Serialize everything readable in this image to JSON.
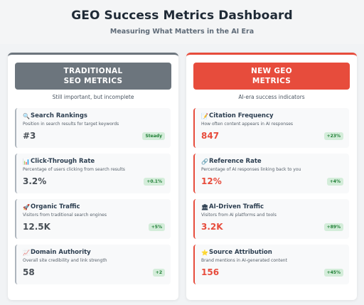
{
  "header": {
    "title": "GEO Success Metrics Dashboard",
    "subtitle": "Measuring What Matters in the AI Era"
  },
  "traditional": {
    "title_line1": "TRADITIONAL",
    "title_line2": "SEO METRICS",
    "caption": "Still important, but incomplete",
    "accent_color": "#6c757d",
    "metrics": [
      {
        "icon": "search-icon",
        "glyph": "🔍",
        "name": "Search Rankings",
        "description": "Position in search results for target keywords",
        "value": "#3",
        "badge": "Steady"
      },
      {
        "icon": "chart-icon",
        "glyph": "📊",
        "name": "Click-Through Rate",
        "description": "Percentage of users clicking from search results",
        "value": "3.2%",
        "badge": "+0.1%"
      },
      {
        "icon": "rocket-icon",
        "glyph": "🚀",
        "name": "Organic Traffic",
        "description": "Visitors from traditional search engines",
        "value": "12.5K",
        "badge": "+5%"
      },
      {
        "icon": "trending-up-icon",
        "glyph": "📈",
        "name": "Domain Authority",
        "description": "Overall site credibility and link strength",
        "value": "58",
        "badge": "+2"
      }
    ]
  },
  "geo": {
    "title_line1": "NEW GEO",
    "title_line2": "METRICS",
    "caption": "AI-era success indicators",
    "accent_color": "#e74c3c",
    "metrics": [
      {
        "icon": "memo-icon",
        "glyph": "📝",
        "name": "Citation Frequency",
        "description": "How often content appears in AI responses",
        "value": "847",
        "badge": "+23%"
      },
      {
        "icon": "link-icon",
        "glyph": "🔗",
        "name": "Reference Rate",
        "description": "Percentage of AI responses linking back to you",
        "value": "12%",
        "badge": "+4%"
      },
      {
        "icon": "bank-icon",
        "glyph": "🏛",
        "name": "AI-Driven Traffic",
        "description": "Visitors from AI platforms and tools",
        "value": "3.2K",
        "badge": "+89%"
      },
      {
        "icon": "star-icon",
        "glyph": "⭐",
        "name": "Source Attribution",
        "description": "Brand mentions in AI-generated content",
        "value": "156",
        "badge": "+45%"
      }
    ]
  }
}
